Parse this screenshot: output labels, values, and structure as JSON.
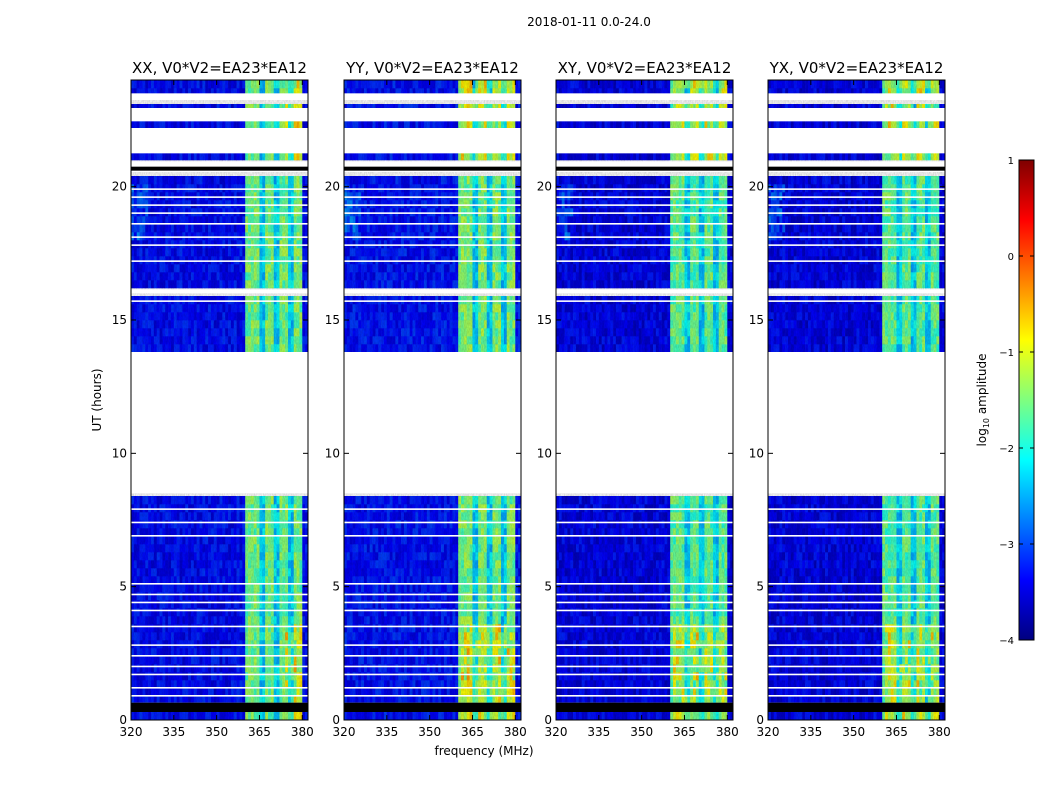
{
  "figure": {
    "suptitle": "2018-01-11 0.0-24.0",
    "xlabel": "frequency (MHz)",
    "ylabel": "UT (hours)"
  },
  "chart_data": {
    "type": "heatmap",
    "title": "2018-01-11 0.0-24.0",
    "xlabel": "frequency (MHz)",
    "ylabel": "UT (hours)",
    "xlim": [
      320,
      382
    ],
    "ylim": [
      0,
      24
    ],
    "x_ticks": [
      320,
      335,
      350,
      365,
      380
    ],
    "y_ticks": [
      0,
      5,
      10,
      15,
      20
    ],
    "panels": [
      {
        "title": "XX, V0*V2=EA23*EA12",
        "rfi_channels": [
          366,
          371,
          376
        ],
        "rfi_band": [
          360.5,
          379.5
        ],
        "hot_band": [
          374,
          380.5
        ],
        "offset": 0.0
      },
      {
        "title": "YY, V0*V2=EA23*EA12",
        "rfi_channels": [
          366,
          371,
          376
        ],
        "rfi_band": [
          360.5,
          379.5
        ],
        "hot_band": [
          361,
          380
        ],
        "offset": 0.05
      },
      {
        "title": "XY, V0*V2=EA23*EA12",
        "rfi_channels": [
          366,
          371,
          376
        ],
        "rfi_band": [
          360.5,
          379.5
        ],
        "hot_band": [
          361,
          380
        ],
        "offset": -0.1
      },
      {
        "title": "YX, V0*V2=EA23*EA12",
        "rfi_channels": [
          366,
          371,
          376
        ],
        "rfi_band": [
          360.5,
          379.5
        ],
        "hot_band": [
          361,
          380
        ],
        "offset": -0.1
      }
    ],
    "flagged_time_ranges_hours": [
      [
        0.3,
        0.65
      ],
      [
        8.5,
        13.8
      ],
      [
        16.0,
        16.15
      ],
      [
        20.55,
        20.95
      ],
      [
        21.25,
        22.2
      ],
      [
        22.45,
        22.95
      ],
      [
        23.25,
        23.5
      ]
    ],
    "black_time_ranges_hours": [
      [
        0.3,
        0.65
      ],
      [
        20.6,
        20.75
      ]
    ],
    "thin_gap_times_hours": [
      0.9,
      1.2,
      1.7,
      2.0,
      2.4,
      2.8,
      3.5,
      4.1,
      4.4,
      4.7,
      5.1,
      6.9,
      7.4,
      7.9,
      17.2,
      17.8,
      18.1,
      18.6,
      19.0,
      19.3,
      19.6,
      19.9,
      15.7
    ],
    "colorbar": {
      "label": "log10 amplitude",
      "ticks": [
        -4,
        -3,
        -2,
        -1,
        0,
        1
      ],
      "range": [
        -4,
        1
      ],
      "colormap": "jet",
      "stops": [
        "#00007f",
        "#0000ff",
        "#007fff",
        "#00ffff",
        "#7fff7f",
        "#ffff00",
        "#ff7f00",
        "#ff0000",
        "#7f0000"
      ]
    }
  }
}
